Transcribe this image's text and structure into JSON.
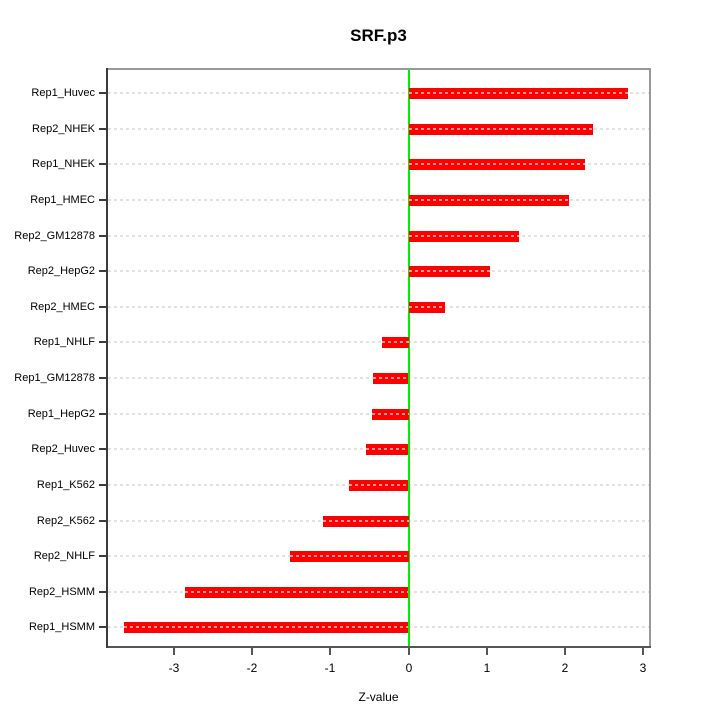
{
  "title": "SRF.p3",
  "xlabel": "Z-value",
  "colors": {
    "bar": "#FF0000",
    "bar_dash_overlay": "rgba(255,255,255,0.6)",
    "grid": "#E2E2E2",
    "zero_line": "#00EE00",
    "axis_dark": "#3c3c3c",
    "box_light": "#999999"
  },
  "chart_data": {
    "type": "bar",
    "orientation": "horizontal",
    "title": "SRF.p3",
    "xlabel": "Z-value",
    "ylabel": "",
    "categories": [
      "Rep1_Huvec",
      "Rep2_NHEK",
      "Rep1_NHEK",
      "Rep1_HMEC",
      "Rep2_GM12878",
      "Rep2_HepG2",
      "Rep2_HMEC",
      "Rep1_NHLF",
      "Rep1_GM12878",
      "Rep1_HepG2",
      "Rep2_Huvec",
      "Rep1_K562",
      "Rep2_K562",
      "Rep2_NHLF",
      "Rep2_HSMM",
      "Rep1_HSMM"
    ],
    "values": [
      2.81,
      2.36,
      2.26,
      2.05,
      1.41,
      1.04,
      0.46,
      -0.34,
      -0.45,
      -0.47,
      -0.54,
      -0.76,
      -1.1,
      -1.52,
      -2.86,
      -3.64
    ],
    "xlim": [
      -3.85,
      3.08
    ],
    "xticks": [
      -3,
      -2,
      -1,
      0,
      1,
      2,
      3
    ],
    "grid": true,
    "legend": null,
    "zero_reference_line": 0
  }
}
